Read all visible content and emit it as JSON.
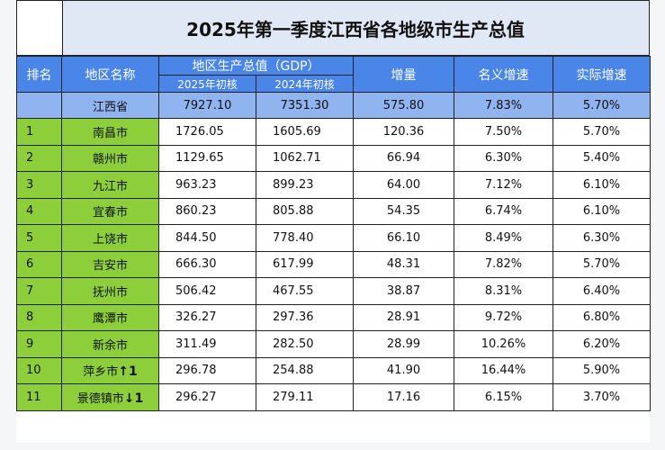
{
  "title": "2025年第一季度江西省各地级市生产总值",
  "header": {
    "rank": "排名",
    "region": "地区名称",
    "gdp_group": "地区生产总值（GDP）",
    "gdp_2025": "2025年初核",
    "gdp_2024": "2024年初核",
    "increase": "增量",
    "nominal": "名义增速",
    "real": "实际增速"
  },
  "province": {
    "name": "江西省",
    "gdp_2025": "7927.10",
    "gdp_2024": "7351.30",
    "increase": "575.80",
    "nominal": "7.83%",
    "real": "5.70%"
  },
  "rows": [
    {
      "rank": "1",
      "name": "南昌市",
      "gdp_2025": "1726.05",
      "gdp_2024": "1605.69",
      "increase": "120.36",
      "nominal": "7.50%",
      "real": "5.70%",
      "arrow": ""
    },
    {
      "rank": "2",
      "name": "赣州市",
      "gdp_2025": "1129.65",
      "gdp_2024": "1062.71",
      "increase": "66.94",
      "nominal": "6.30%",
      "real": "5.40%",
      "arrow": ""
    },
    {
      "rank": "3",
      "name": "九江市",
      "gdp_2025": "963.23",
      "gdp_2024": "899.23",
      "increase": "64.00",
      "nominal": "7.12%",
      "real": "6.10%",
      "arrow": ""
    },
    {
      "rank": "4",
      "name": "宜春市",
      "gdp_2025": "860.23",
      "gdp_2024": "805.88",
      "increase": "54.35",
      "nominal": "6.74%",
      "real": "6.10%",
      "arrow": ""
    },
    {
      "rank": "5",
      "name": "上饶市",
      "gdp_2025": "844.50",
      "gdp_2024": "778.40",
      "increase": "66.10",
      "nominal": "8.49%",
      "real": "6.30%",
      "arrow": ""
    },
    {
      "rank": "6",
      "name": "吉安市",
      "gdp_2025": "666.30",
      "gdp_2024": "617.99",
      "increase": "48.31",
      "nominal": "7.82%",
      "real": "5.70%",
      "arrow": ""
    },
    {
      "rank": "7",
      "name": "抚州市",
      "gdp_2025": "506.42",
      "gdp_2024": "467.55",
      "increase": "38.87",
      "nominal": "8.31%",
      "real": "6.40%",
      "arrow": ""
    },
    {
      "rank": "8",
      "name": "鹰潭市",
      "gdp_2025": "326.27",
      "gdp_2024": "297.36",
      "increase": "28.91",
      "nominal": "9.72%",
      "real": "6.80%",
      "arrow": ""
    },
    {
      "rank": "9",
      "name": "新余市",
      "gdp_2025": "311.49",
      "gdp_2024": "282.50",
      "increase": "28.99",
      "nominal": "10.26%",
      "real": "6.20%",
      "arrow": ""
    },
    {
      "rank": "10",
      "name": "萍乡市",
      "gdp_2025": "296.78",
      "gdp_2024": "254.88",
      "increase": "41.90",
      "nominal": "16.44%",
      "real": "5.90%",
      "arrow": "↑1"
    },
    {
      "rank": "11",
      "name": "景德镇市",
      "gdp_2025": "296.27",
      "gdp_2024": "279.11",
      "increase": "17.16",
      "nominal": "6.15%",
      "real": "3.70%",
      "arrow": "↓1"
    }
  ]
}
